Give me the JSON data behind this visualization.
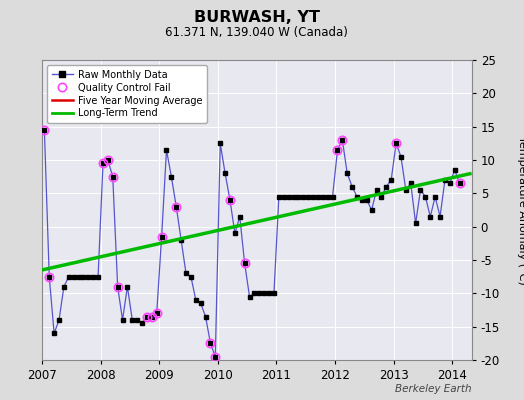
{
  "title": "BURWASH, YT",
  "subtitle": "61.371 N, 139.040 W (Canada)",
  "ylabel": "Temperature Anomaly (°C)",
  "credit": "Berkeley Earth",
  "ylim": [
    -20,
    25
  ],
  "yticks": [
    -20,
    -15,
    -10,
    -5,
    0,
    5,
    10,
    15,
    20,
    25
  ],
  "xlim": [
    2007.0,
    2014.33
  ],
  "xticks": [
    2007,
    2008,
    2009,
    2010,
    2011,
    2012,
    2013,
    2014
  ],
  "bg_color": "#dcdcdc",
  "plot_bg_color": "#e8e8f0",
  "raw_x": [
    2007.042,
    2007.125,
    2007.208,
    2007.292,
    2007.375,
    2007.458,
    2007.542,
    2007.625,
    2007.708,
    2007.792,
    2007.875,
    2007.958,
    2008.042,
    2008.125,
    2008.208,
    2008.292,
    2008.375,
    2008.458,
    2008.542,
    2008.625,
    2008.708,
    2008.792,
    2008.875,
    2008.958,
    2009.042,
    2009.125,
    2009.208,
    2009.292,
    2009.375,
    2009.458,
    2009.542,
    2009.625,
    2009.708,
    2009.792,
    2009.875,
    2009.958,
    2010.042,
    2010.125,
    2010.208,
    2010.292,
    2010.375,
    2010.458,
    2010.542,
    2010.625,
    2010.708,
    2010.792,
    2010.875,
    2010.958,
    2011.042,
    2011.125,
    2011.208,
    2011.292,
    2011.375,
    2011.458,
    2011.542,
    2011.625,
    2011.708,
    2011.792,
    2011.875,
    2011.958,
    2012.042,
    2012.125,
    2012.208,
    2012.292,
    2012.375,
    2012.458,
    2012.542,
    2012.625,
    2012.708,
    2012.792,
    2012.875,
    2012.958,
    2013.042,
    2013.125,
    2013.208,
    2013.292,
    2013.375,
    2013.458,
    2013.542,
    2013.625,
    2013.708,
    2013.792,
    2013.875,
    2013.958,
    2014.042,
    2014.125
  ],
  "raw_y": [
    14.5,
    -7.5,
    -16.0,
    -14.0,
    -9.0,
    -7.5,
    -7.5,
    -7.5,
    -7.5,
    -7.5,
    -7.5,
    -7.5,
    9.5,
    10.0,
    7.5,
    -9.0,
    -14.0,
    -9.0,
    -14.0,
    -14.0,
    -14.5,
    -13.5,
    -13.5,
    -13.0,
    -1.5,
    11.5,
    7.5,
    3.0,
    -2.0,
    -7.0,
    -7.5,
    -11.0,
    -11.5,
    -13.5,
    -17.5,
    -19.5,
    12.5,
    8.0,
    4.0,
    -1.0,
    1.5,
    -5.5,
    -10.5,
    -10.0,
    -10.0,
    -10.0,
    -10.0,
    -10.0,
    4.5,
    4.5,
    4.5,
    4.5,
    4.5,
    4.5,
    4.5,
    4.5,
    4.5,
    4.5,
    4.5,
    4.5,
    11.5,
    13.0,
    8.0,
    6.0,
    4.5,
    4.0,
    4.0,
    2.5,
    5.5,
    4.5,
    6.0,
    7.0,
    12.5,
    10.5,
    5.5,
    6.5,
    0.5,
    5.5,
    4.5,
    1.5,
    4.5,
    1.5,
    7.0,
    6.5,
    8.5,
    6.5
  ],
  "qc_fail_x": [
    2007.042,
    2007.125,
    2008.042,
    2008.125,
    2008.208,
    2008.292,
    2008.792,
    2008.875,
    2008.958,
    2009.042,
    2009.292,
    2009.875,
    2009.958,
    2010.208,
    2010.458,
    2012.042,
    2012.125,
    2013.042,
    2014.125
  ],
  "qc_fail_y": [
    14.5,
    -7.5,
    9.5,
    10.0,
    7.5,
    -9.0,
    -13.5,
    -13.5,
    -13.0,
    -1.5,
    3.0,
    -17.5,
    -19.5,
    4.0,
    -5.5,
    11.5,
    13.0,
    12.5,
    6.5
  ],
  "trend_x": [
    2007.0,
    2014.33
  ],
  "trend_y": [
    -6.5,
    8.0
  ],
  "line_color": "#5555cc",
  "dot_color": "#000000",
  "qc_color": "#ff44ff",
  "trend_color": "#00bb00",
  "mavg_color": "#dd0000"
}
